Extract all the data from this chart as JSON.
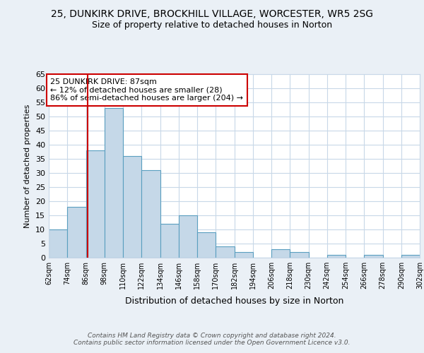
{
  "title_line1": "25, DUNKIRK DRIVE, BROCKHILL VILLAGE, WORCESTER, WR5 2SG",
  "title_line2": "Size of property relative to detached houses in Norton",
  "xlabel": "Distribution of detached houses by size in Norton",
  "ylabel": "Number of detached properties",
  "bin_labels": [
    "62sqm",
    "74sqm",
    "86sqm",
    "98sqm",
    "110sqm",
    "122sqm",
    "134sqm",
    "146sqm",
    "158sqm",
    "170sqm",
    "182sqm",
    "194sqm",
    "206sqm",
    "218sqm",
    "230sqm",
    "242sqm",
    "254sqm",
    "266sqm",
    "278sqm",
    "290sqm",
    "302sqm"
  ],
  "bin_edges": [
    62,
    74,
    86,
    98,
    110,
    122,
    134,
    146,
    158,
    170,
    182,
    194,
    206,
    218,
    230,
    242,
    254,
    266,
    278,
    290,
    302
  ],
  "bar_heights": [
    10,
    18,
    38,
    53,
    36,
    31,
    12,
    15,
    9,
    4,
    2,
    0,
    3,
    2,
    0,
    1,
    0,
    1,
    0,
    1
  ],
  "bar_color": "#c5d8e8",
  "bar_edge_color": "#5a9fc0",
  "property_line_x": 87,
  "property_line_color": "#cc0000",
  "annotation_text": "25 DUNKIRK DRIVE: 87sqm\n← 12% of detached houses are smaller (28)\n86% of semi-detached houses are larger (204) →",
  "annotation_box_color": "#ffffff",
  "annotation_box_edge_color": "#cc0000",
  "ylim": [
    0,
    65
  ],
  "yticks": [
    0,
    5,
    10,
    15,
    20,
    25,
    30,
    35,
    40,
    45,
    50,
    55,
    60,
    65
  ],
  "footer_text": "Contains HM Land Registry data © Crown copyright and database right 2024.\nContains public sector information licensed under the Open Government Licence v3.0.",
  "bg_color": "#eaf0f6",
  "plot_bg_color": "#ffffff",
  "grid_color": "#c8d8e8"
}
